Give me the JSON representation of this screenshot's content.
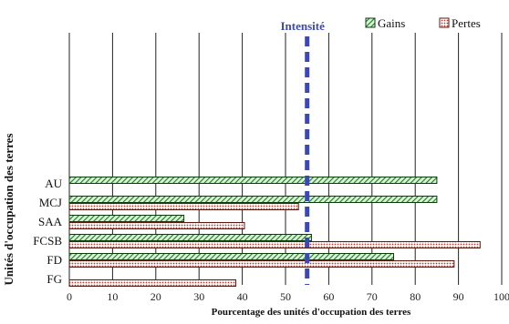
{
  "chart_data": {
    "type": "bar",
    "orientation": "horizontal",
    "categories": [
      "AU",
      "MCJ",
      "SAA",
      "FCSB",
      "FD",
      "FG"
    ],
    "series": [
      {
        "name": "Gains",
        "values": [
          85,
          85,
          26.5,
          56,
          75,
          null
        ],
        "color": "#1f7a1f",
        "pattern": "diagonal-hatch"
      },
      {
        "name": "Pertes",
        "values": [
          null,
          53,
          40.5,
          95,
          89,
          38.5
        ],
        "color": "#c0392b",
        "pattern": "dots"
      }
    ],
    "reference_line": {
      "label": "Intensité",
      "value": 55,
      "color": "#3a49b6",
      "style": "dashed"
    },
    "xlabel": "Pourcentage des unités d'occupation des terres",
    "ylabel": "Unités d'occupation des terres",
    "xlim": [
      0,
      100
    ],
    "xticks": [
      0,
      10,
      20,
      30,
      40,
      50,
      60,
      70,
      80,
      90,
      100
    ],
    "grid": "vertical",
    "legend_position": "top-right"
  }
}
